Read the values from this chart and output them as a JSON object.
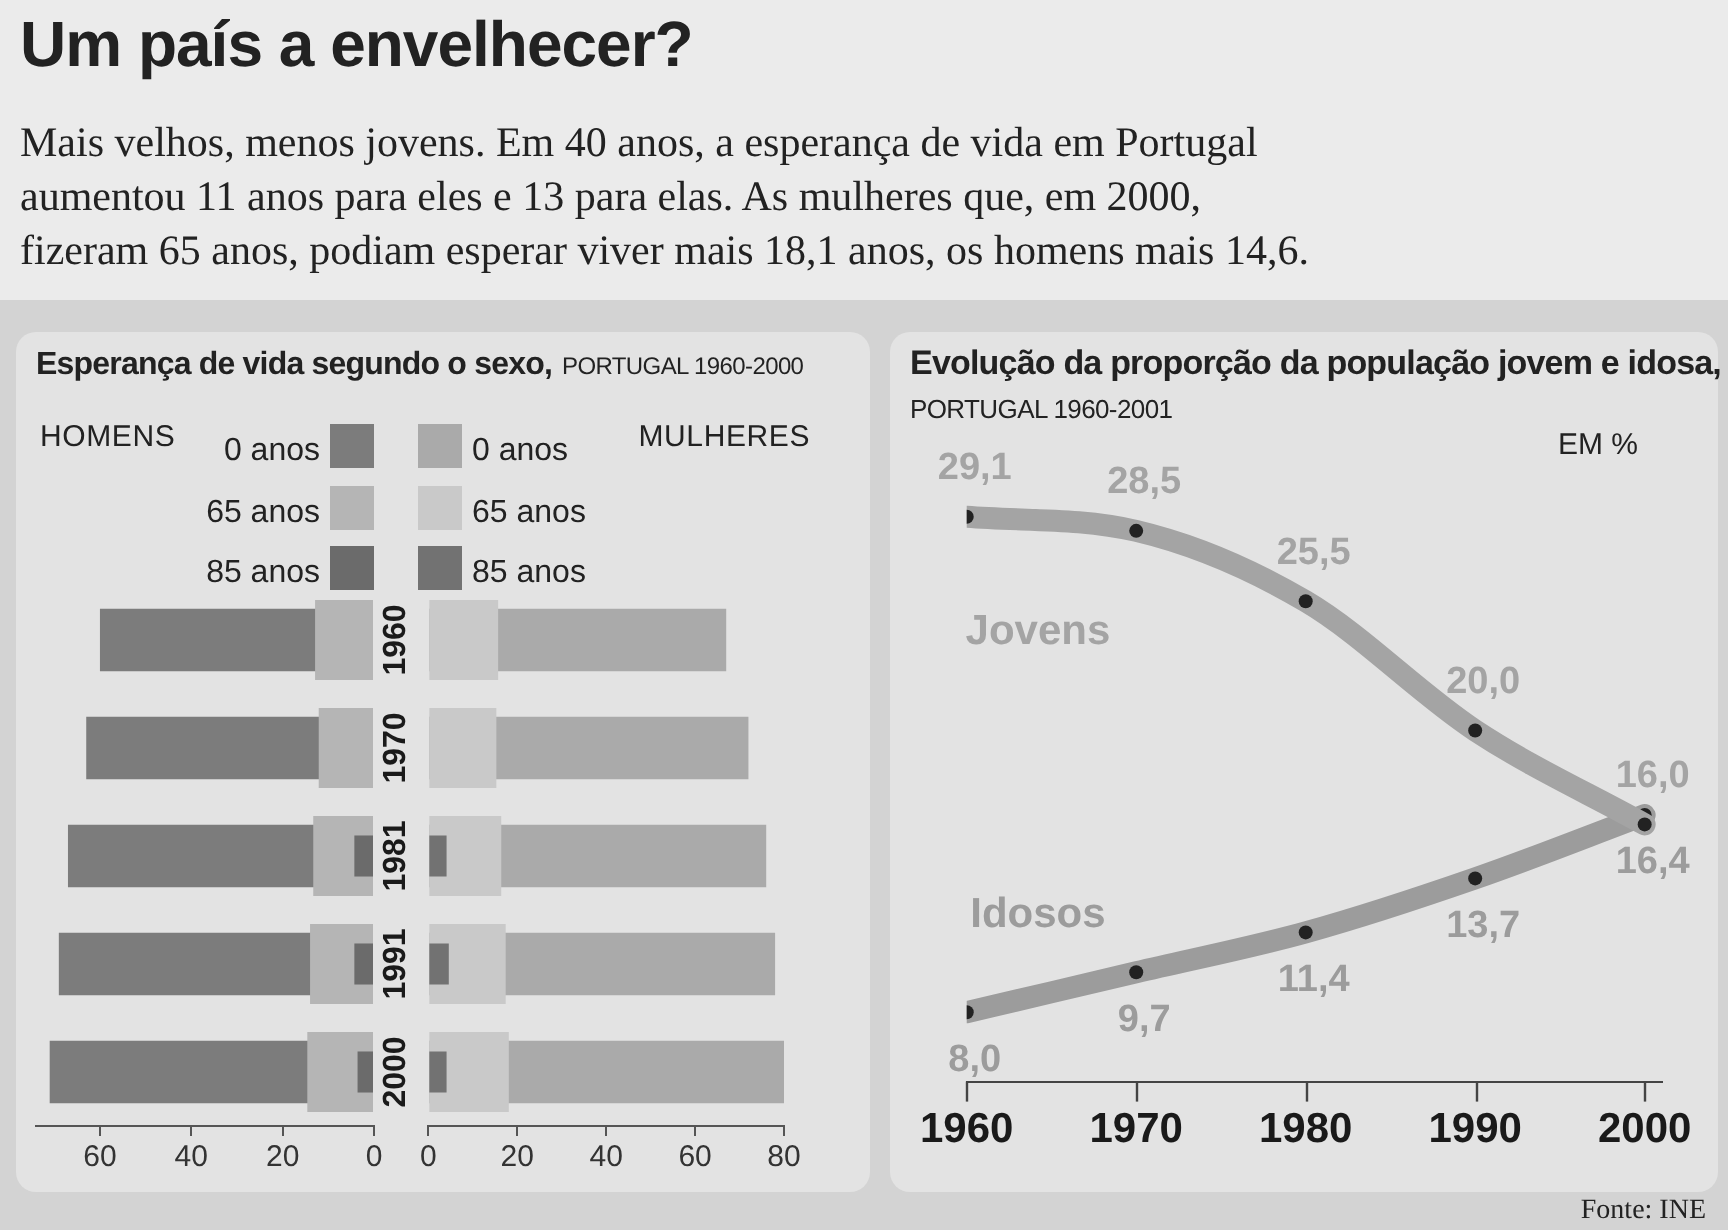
{
  "chart_data": [
    {
      "type": "other",
      "title": "Um país a envelhecer?",
      "subtitle": "Mais velhos, menos jovens. Em 40 anos, a esperança de vida em Portugal\naumentou 11 anos para eles e 13 para elas. As mulheres que, em 2000,\nfizeram 65 anos, podiam esperar viver mais 18,1 anos, os homens mais 14,6."
    },
    {
      "type": "other",
      "title": "Esperança de vida segundo o sexo,",
      "subtitle": "PORTUGAL 1960-2000"
    },
    {
      "type": "bar",
      "orientation": "horizontal",
      "legend_title": "HOMENS",
      "legend": "top",
      "categories": [
        "1960",
        "1970",
        "1981",
        "1991",
        "2000"
      ],
      "xlim": [
        74,
        0
      ],
      "xticks": [
        60,
        40,
        20,
        0
      ],
      "series": [
        {
          "name": "0 anos",
          "color": "#7c7c7c",
          "values": [
            60,
            63,
            67,
            69,
            71
          ]
        },
        {
          "name": "65 anos",
          "color": "#b5b5b5",
          "values": [
            12.9,
            12.1,
            13.3,
            14,
            14.6
          ]
        },
        {
          "name": "85 anos",
          "color": "#6b6b6b",
          "values": [
            null,
            null,
            4.3,
            4.3,
            3.6
          ]
        }
      ]
    },
    {
      "type": "bar",
      "orientation": "horizontal",
      "legend_title": "MULHERES",
      "legend": "top",
      "categories": [
        "1960",
        "1970",
        "1981",
        "1991",
        "2000"
      ],
      "tick_labels": "x",
      "xlim": [
        0,
        80
      ],
      "xticks": [
        0,
        20,
        40,
        60,
        80
      ],
      "series": [
        {
          "name": "0 anos",
          "color": "#aaaaaa",
          "values": [
            67,
            72,
            76,
            78,
            80
          ]
        },
        {
          "name": "65 anos",
          "color": "#c9c9c9",
          "values": [
            15.7,
            15.3,
            16.4,
            17.4,
            18.1
          ]
        },
        {
          "name": "85 anos",
          "color": "#727272",
          "values": [
            null,
            null,
            4.1,
            4.6,
            4.1
          ]
        }
      ]
    },
    {
      "type": "line",
      "title": "Evolução da proporção da população jovem e idosa,",
      "subtitle": "PORTUGAL 1960-2001",
      "ylabel": "EM %",
      "x": [
        1960,
        1970,
        1980,
        1990,
        2000
      ],
      "xlim": [
        1960,
        2001
      ],
      "tick_labels": "x",
      "marker": "circle",
      "annotations": [
        "Fonte: INE"
      ],
      "xticks": [
        1960,
        1970,
        1980,
        1990,
        2000
      ],
      "series": [
        {
          "name": "Jovens",
          "color": "#a4a4a4",
          "values": [
            29.1,
            28.5,
            25.5,
            20.0,
            16.0
          ],
          "value_labels": [
            "29,1",
            "28,5",
            "25,5",
            "20,0",
            "16,0"
          ]
        },
        {
          "name": "Idosos",
          "color": "#9c9c9c",
          "values": [
            8.0,
            9.7,
            11.4,
            13.7,
            16.4
          ],
          "value_labels": [
            "8,0",
            "9,7",
            "11,4",
            "13,7",
            "16,4"
          ]
        }
      ]
    }
  ]
}
